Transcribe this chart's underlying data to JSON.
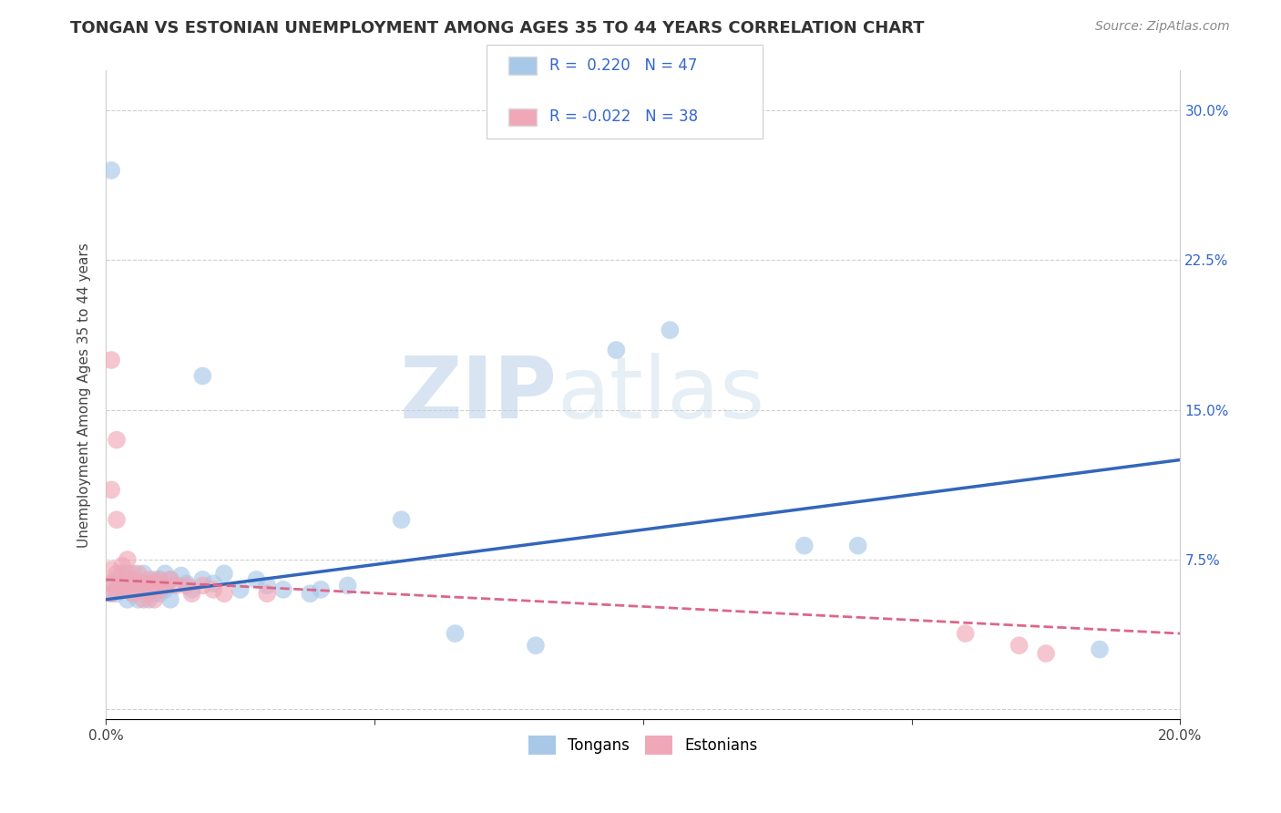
{
  "title": "TONGAN VS ESTONIAN UNEMPLOYMENT AMONG AGES 35 TO 44 YEARS CORRELATION CHART",
  "source": "Source: ZipAtlas.com",
  "ylabel": "Unemployment Among Ages 35 to 44 years",
  "xlim": [
    0.0,
    0.2
  ],
  "ylim": [
    -0.005,
    0.32
  ],
  "xticks": [
    0.0,
    0.05,
    0.1,
    0.15,
    0.2
  ],
  "xticklabels": [
    "0.0%",
    "",
    "",
    "",
    "20.0%"
  ],
  "ytick_positions": [
    0.0,
    0.075,
    0.15,
    0.225,
    0.3
  ],
  "right_yticklabels": [
    "",
    "7.5%",
    "15.0%",
    "22.5%",
    "30.0%"
  ],
  "grid_color": "#bbbbbb",
  "background_color": "#ffffff",
  "watermark_zip": "ZIP",
  "watermark_atlas": "atlas",
  "legend_R_tongan": "0.220",
  "legend_N_tongan": "47",
  "legend_R_estonian": "-0.022",
  "legend_N_estonian": "38",
  "tongan_color": "#a8c8e8",
  "estonian_color": "#f0a8b8",
  "tongan_line_color": "#3366bb",
  "estonian_line_color": "#dd6688",
  "tongans_scatter": [
    [
      0.001,
      0.063
    ],
    [
      0.001,
      0.058
    ],
    [
      0.002,
      0.065
    ],
    [
      0.002,
      0.058
    ],
    [
      0.003,
      0.068
    ],
    [
      0.003,
      0.06
    ],
    [
      0.004,
      0.063
    ],
    [
      0.004,
      0.055
    ],
    [
      0.005,
      0.068
    ],
    [
      0.005,
      0.058
    ],
    [
      0.006,
      0.063
    ],
    [
      0.006,
      0.055
    ],
    [
      0.007,
      0.068
    ],
    [
      0.007,
      0.06
    ],
    [
      0.008,
      0.063
    ],
    [
      0.008,
      0.055
    ],
    [
      0.009,
      0.065
    ],
    [
      0.009,
      0.058
    ],
    [
      0.01,
      0.065
    ],
    [
      0.01,
      0.058
    ],
    [
      0.011,
      0.068
    ],
    [
      0.011,
      0.06
    ],
    [
      0.012,
      0.065
    ],
    [
      0.012,
      0.055
    ],
    [
      0.014,
      0.067
    ],
    [
      0.015,
      0.063
    ],
    [
      0.016,
      0.06
    ],
    [
      0.018,
      0.065
    ],
    [
      0.02,
      0.063
    ],
    [
      0.022,
      0.068
    ],
    [
      0.025,
      0.06
    ],
    [
      0.028,
      0.065
    ],
    [
      0.03,
      0.062
    ],
    [
      0.033,
      0.06
    ],
    [
      0.038,
      0.058
    ],
    [
      0.04,
      0.06
    ],
    [
      0.045,
      0.062
    ],
    [
      0.055,
      0.095
    ],
    [
      0.065,
      0.038
    ],
    [
      0.08,
      0.032
    ],
    [
      0.095,
      0.18
    ],
    [
      0.13,
      0.082
    ],
    [
      0.14,
      0.082
    ],
    [
      0.185,
      0.03
    ],
    [
      0.001,
      0.27
    ],
    [
      0.018,
      0.167
    ],
    [
      0.105,
      0.19
    ]
  ],
  "estonians_scatter": [
    [
      0.001,
      0.063
    ],
    [
      0.001,
      0.058
    ],
    [
      0.002,
      0.068
    ],
    [
      0.002,
      0.06
    ],
    [
      0.003,
      0.072
    ],
    [
      0.003,
      0.063
    ],
    [
      0.004,
      0.068
    ],
    [
      0.004,
      0.06
    ],
    [
      0.005,
      0.065
    ],
    [
      0.005,
      0.058
    ],
    [
      0.006,
      0.068
    ],
    [
      0.006,
      0.06
    ],
    [
      0.007,
      0.063
    ],
    [
      0.007,
      0.055
    ],
    [
      0.008,
      0.065
    ],
    [
      0.008,
      0.058
    ],
    [
      0.009,
      0.063
    ],
    [
      0.009,
      0.055
    ],
    [
      0.01,
      0.065
    ],
    [
      0.01,
      0.06
    ],
    [
      0.011,
      0.062
    ],
    [
      0.012,
      0.065
    ],
    [
      0.013,
      0.062
    ],
    [
      0.015,
      0.062
    ],
    [
      0.016,
      0.058
    ],
    [
      0.018,
      0.062
    ],
    [
      0.02,
      0.06
    ],
    [
      0.022,
      0.058
    ],
    [
      0.001,
      0.175
    ],
    [
      0.002,
      0.135
    ],
    [
      0.001,
      0.11
    ],
    [
      0.002,
      0.095
    ],
    [
      0.001,
      0.07
    ],
    [
      0.004,
      0.075
    ],
    [
      0.16,
      0.038
    ],
    [
      0.17,
      0.032
    ],
    [
      0.175,
      0.028
    ],
    [
      0.03,
      0.058
    ]
  ],
  "title_fontsize": 13,
  "axis_label_fontsize": 11,
  "tick_fontsize": 11,
  "legend_fontsize": 12,
  "source_fontsize": 10
}
